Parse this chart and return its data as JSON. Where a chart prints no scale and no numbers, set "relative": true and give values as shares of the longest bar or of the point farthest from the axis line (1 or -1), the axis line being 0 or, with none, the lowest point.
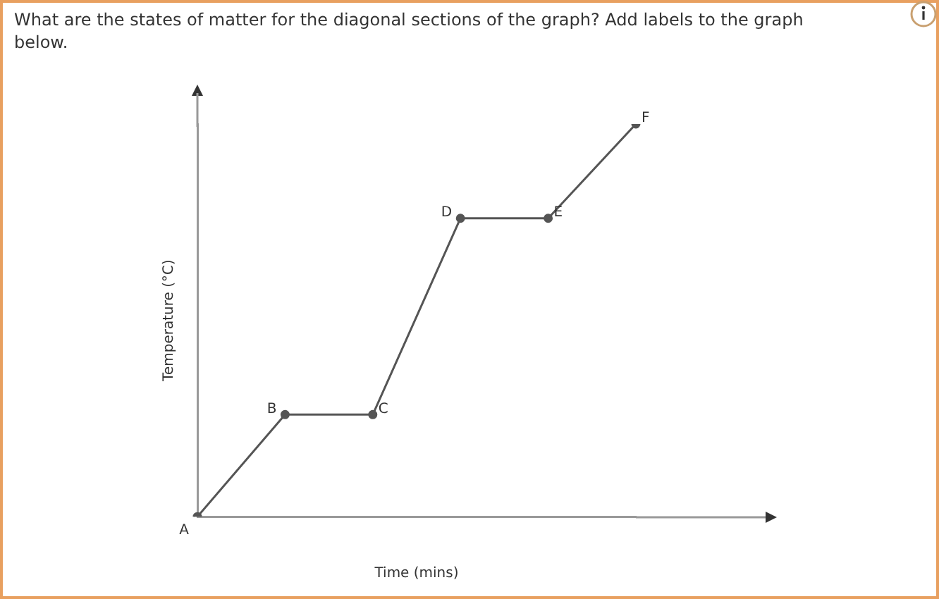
{
  "chart_data": {
    "type": "line",
    "title": "What are the states of matter for the diagonal sections of the graph? Add labels to the graph below.",
    "xlabel": "Time (mins)",
    "ylabel": "Temperature (°C)",
    "relative": true,
    "categories": [
      null,
      null,
      null,
      null,
      null,
      null
    ],
    "series": [
      {
        "color": "#555555",
        "values": [
          0,
          0.26,
          0.26,
          0.76,
          0.76,
          1
        ]
      }
    ],
    "marker": "circle",
    "line_style": "solid",
    "legend": false,
    "annotations": [
      "A",
      "B",
      "C",
      "D",
      "E",
      "F"
    ]
  }
}
